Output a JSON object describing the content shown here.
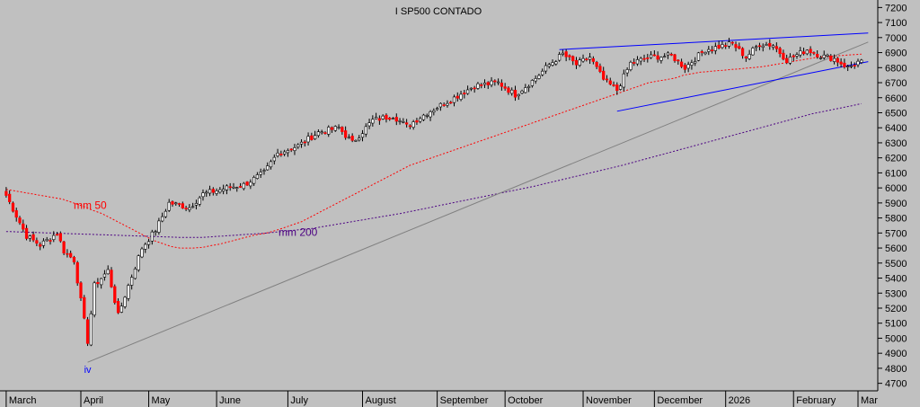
{
  "chart_data": {
    "type": "candlestick",
    "title": "I SP500 CONTADO",
    "xlabel": "",
    "ylabel": "",
    "ylim": [
      4650,
      7250
    ],
    "y_ticks": [
      7200,
      7100,
      7000,
      6900,
      6800,
      6700,
      6600,
      6500,
      6400,
      6300,
      6200,
      6100,
      6000,
      5900,
      5800,
      5700,
      5600,
      5500,
      5400,
      5300,
      5200,
      5100,
      5000,
      4900,
      4800,
      4700
    ],
    "x_labels": [
      "March",
      "April",
      "May",
      "June",
      "July",
      "August",
      "September",
      "October",
      "November",
      "December",
      "2026",
      "February",
      "Mar"
    ],
    "grid": false,
    "colors": {
      "up": "#ffffff",
      "down": "#ff0000",
      "mm50": "#ff0000",
      "mm200": "#4b0082",
      "channel": "#0000ff",
      "trendline": "#808080",
      "wave_label": "#0000ff"
    },
    "annotations": {
      "mm50": "mm 50",
      "mm200": "mm 200",
      "wave": "iv"
    },
    "series": [
      {
        "name": "mm 50",
        "values": [
          5990,
          5985,
          5980,
          5975,
          5970,
          5965,
          5960,
          5955,
          5950,
          5945,
          5940,
          5935,
          5930,
          5925,
          5915,
          5905,
          5895,
          5885,
          5875,
          5862,
          5850,
          5840,
          5830,
          5815,
          5800,
          5785,
          5770,
          5755,
          5740,
          5725,
          5710,
          5695,
          5680,
          5665,
          5650,
          5640,
          5630,
          5620,
          5610,
          5605,
          5600,
          5600,
          5600,
          5600,
          5602,
          5604,
          5608,
          5615,
          5620,
          5625,
          5632,
          5640,
          5647,
          5655,
          5662,
          5670,
          5677,
          5685,
          5690,
          5695,
          5700,
          5708,
          5716,
          5725,
          5735,
          5745,
          5755,
          5765,
          5775,
          5790,
          5805,
          5820,
          5835,
          5850,
          5865,
          5880,
          5895,
          5910,
          5925,
          5940,
          5955,
          5970,
          5985,
          6000,
          6015,
          6030,
          6045,
          6060,
          6075,
          6090,
          6105,
          6120,
          6135,
          6150,
          6160,
          6170,
          6180,
          6190,
          6200,
          6210,
          6220,
          6230,
          6240,
          6250,
          6260,
          6270,
          6280,
          6290,
          6300,
          6310,
          6320,
          6330,
          6340,
          6350,
          6360,
          6370,
          6380,
          6390,
          6400,
          6410,
          6420,
          6430,
          6440,
          6450,
          6460,
          6470,
          6480,
          6490,
          6500,
          6510,
          6520,
          6530,
          6540,
          6550,
          6560,
          6570,
          6580,
          6590,
          6600,
          6610,
          6620,
          6630,
          6640,
          6650,
          6660,
          6670,
          6680,
          6690,
          6700,
          6705,
          6710,
          6715,
          6720,
          6725,
          6730,
          6740,
          6750,
          6755,
          6760,
          6765,
          6770,
          6772,
          6775,
          6778,
          6780,
          6782,
          6785,
          6788,
          6790,
          6792,
          6795,
          6798,
          6800,
          6803,
          6806,
          6810,
          6815,
          6820,
          6825,
          6830,
          6835,
          6840,
          6845,
          6850,
          6855,
          6860,
          6865,
          6870,
          6872,
          6874,
          6876,
          6878,
          6880,
          6882,
          6884,
          6886,
          6888,
          6890
        ]
      },
      {
        "name": "mm 200",
        "values": [
          5710,
          5709,
          5708,
          5707,
          5706,
          5705,
          5704,
          5703,
          5702,
          5701,
          5700,
          5699,
          5698,
          5697,
          5696,
          5695,
          5694,
          5693,
          5692,
          5691,
          5690,
          5689,
          5688,
          5687,
          5686,
          5685,
          5684,
          5683,
          5682,
          5681,
          5680,
          5679,
          5678,
          5677,
          5676,
          5675,
          5674,
          5673,
          5672,
          5671,
          5670,
          5670,
          5670,
          5670,
          5670,
          5672,
          5674,
          5676,
          5678,
          5680,
          5682,
          5684,
          5686,
          5688,
          5690,
          5692,
          5694,
          5696,
          5698,
          5700,
          5703,
          5706,
          5709,
          5712,
          5715,
          5718,
          5721,
          5724,
          5727,
          5730,
          5735,
          5740,
          5745,
          5750,
          5755,
          5760,
          5765,
          5770,
          5775,
          5780,
          5785,
          5790,
          5795,
          5800,
          5805,
          5810,
          5815,
          5820,
          5825,
          5830,
          5836,
          5842,
          5848,
          5854,
          5860,
          5866,
          5872,
          5878,
          5884,
          5890,
          5896,
          5902,
          5908,
          5914,
          5920,
          5926,
          5932,
          5938,
          5944,
          5950,
          5956,
          5962,
          5968,
          5974,
          5980,
          5986,
          5992,
          5998,
          6004,
          6010,
          6017,
          6024,
          6031,
          6038,
          6045,
          6052,
          6059,
          6066,
          6073,
          6080,
          6087,
          6094,
          6101,
          6108,
          6115,
          6122,
          6129,
          6136,
          6143,
          6150,
          6158,
          6166,
          6174,
          6182,
          6190,
          6198,
          6206,
          6214,
          6222,
          6230,
          6238,
          6246,
          6254,
          6262,
          6270,
          6278,
          6286,
          6294,
          6302,
          6310,
          6318,
          6326,
          6334,
          6342,
          6350,
          6358,
          6366,
          6374,
          6382,
          6390,
          6398,
          6406,
          6414,
          6422,
          6430,
          6438,
          6446,
          6454,
          6462,
          6470,
          6478,
          6486,
          6494,
          6500,
          6506,
          6512,
          6518,
          6524,
          6530,
          6536,
          6542,
          6548,
          6554,
          6560
        ]
      }
    ],
    "x_ticks": {
      "March": 0,
      "April": 22,
      "May": 42,
      "June": 62,
      "July": 83,
      "August": 105,
      "September": 127,
      "October": 147,
      "November": 170,
      "December": 191,
      "2026": 212,
      "February": 232,
      "Mar": 251
    },
    "trendlines": [
      {
        "name": "support",
        "from": {
          "i": 24,
          "v": 4840
        },
        "to": {
          "i": 254,
          "v": 6970
        }
      },
      {
        "name": "channel-top",
        "from": {
          "i": 163,
          "v": 6920
        },
        "to": {
          "i": 254,
          "v": 7030
        }
      },
      {
        "name": "channel-bottom",
        "from": {
          "i": 180,
          "v": 6510
        },
        "to": {
          "i": 254,
          "v": 6840
        }
      }
    ],
    "wave_label_pos": {
      "i": 24,
      "v": 4770
    },
    "candles": {
      "start": [
        5950,
        5.3
      ],
      "pivots": [
        [
          0,
          5950
        ],
        [
          6,
          5680
        ],
        [
          10,
          5620
        ],
        [
          15,
          5700
        ],
        [
          17,
          5580
        ],
        [
          20,
          5520
        ],
        [
          24,
          4980
        ],
        [
          26,
          5350
        ],
        [
          30,
          5450
        ],
        [
          33,
          5150
        ],
        [
          36,
          5350
        ],
        [
          40,
          5600
        ],
        [
          44,
          5720
        ],
        [
          48,
          5900
        ],
        [
          54,
          5870
        ],
        [
          58,
          5960
        ],
        [
          65,
          6000
        ],
        [
          70,
          6020
        ],
        [
          76,
          6100
        ],
        [
          80,
          6230
        ],
        [
          86,
          6280
        ],
        [
          92,
          6370
        ],
        [
          98,
          6400
        ],
        [
          102,
          6300
        ],
        [
          108,
          6450
        ],
        [
          114,
          6480
        ],
        [
          118,
          6410
        ],
        [
          124,
          6500
        ],
        [
          132,
          6600
        ],
        [
          138,
          6680
        ],
        [
          145,
          6700
        ],
        [
          150,
          6620
        ],
        [
          156,
          6730
        ],
        [
          160,
          6820
        ],
        [
          164,
          6890
        ],
        [
          168,
          6820
        ],
        [
          172,
          6870
        ],
        [
          176,
          6720
        ],
        [
          180,
          6650
        ],
        [
          184,
          6830
        ],
        [
          190,
          6870
        ],
        [
          196,
          6880
        ],
        [
          200,
          6800
        ],
        [
          206,
          6920
        ],
        [
          210,
          6940
        ],
        [
          214,
          6960
        ],
        [
          218,
          6870
        ],
        [
          222,
          6960
        ],
        [
          226,
          6950
        ],
        [
          230,
          6850
        ],
        [
          236,
          6920
        ],
        [
          240,
          6880
        ],
        [
          244,
          6860
        ],
        [
          248,
          6800
        ],
        [
          252,
          6850
        ]
      ]
    }
  }
}
